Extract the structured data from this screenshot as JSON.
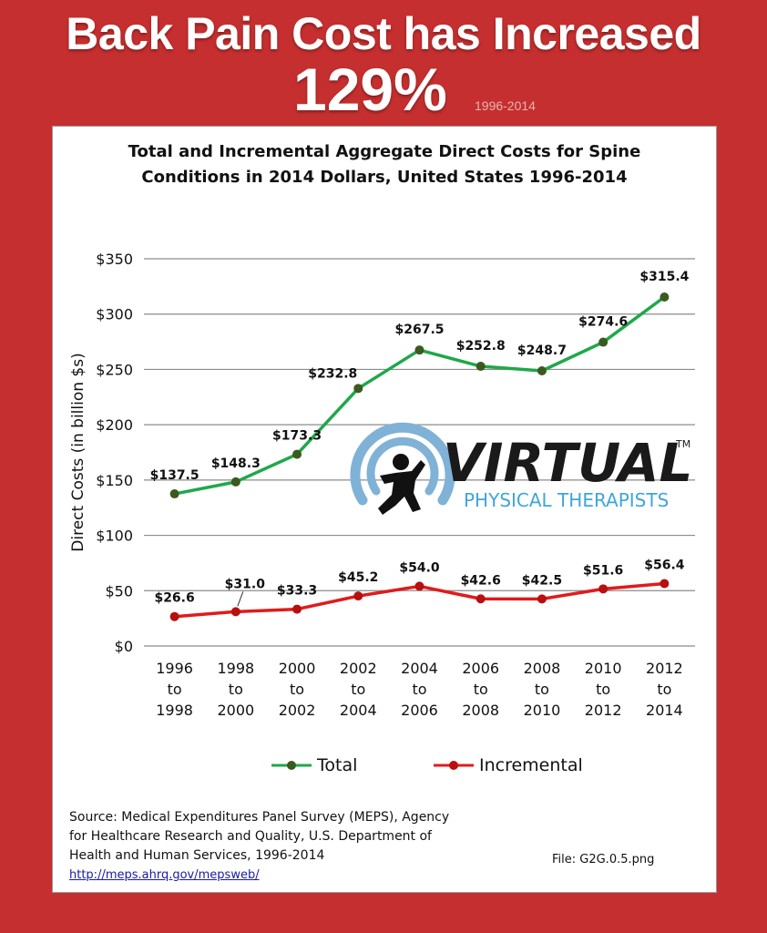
{
  "header": {
    "headline": "Back Pain Cost has Increased",
    "percent": "129%",
    "year_range": "1996-2014"
  },
  "logo": {
    "name": "VIRTUAL",
    "trademark": "TM",
    "subtitle": "PHYSICAL THERAPISTS",
    "colors": {
      "text": "#1a1a1a",
      "accent": "#3fa6d8",
      "ring": "#7fb2d6"
    }
  },
  "chart_data": {
    "type": "line",
    "title_lines": [
      "Total and Incremental Aggregate Direct Costs for Spine",
      "Conditions in 2014 Dollars, United States 1996-2014"
    ],
    "ylabel": "Direct Costs (in billion $s)",
    "ylim": [
      0,
      350
    ],
    "yticks": [
      "$0",
      "$50",
      "$100",
      "$150",
      "$200",
      "$250",
      "$300",
      "$350"
    ],
    "ytick_values": [
      0,
      50,
      100,
      150,
      200,
      250,
      300,
      350
    ],
    "categories": [
      [
        "1996",
        "to",
        "1998"
      ],
      [
        "1998",
        "to",
        "2000"
      ],
      [
        "2000",
        "to",
        "2002"
      ],
      [
        "2002",
        "to",
        "2004"
      ],
      [
        "2004",
        "to",
        "2006"
      ],
      [
        "2006",
        "to",
        "2008"
      ],
      [
        "2008",
        "to",
        "2010"
      ],
      [
        "2010",
        "to",
        "2012"
      ],
      [
        "2012",
        "to",
        "2014"
      ]
    ],
    "grid": true,
    "legend_position": "bottom",
    "series": [
      {
        "name": "Total",
        "color": "#1fa84a",
        "marker_color": "#3b5a1f",
        "values": [
          137.5,
          148.3,
          173.3,
          232.8,
          267.5,
          252.8,
          248.7,
          274.6,
          315.4
        ],
        "labels": [
          "$137.5",
          "$148.3",
          "$173.3",
          "$232.8",
          "$267.5",
          "$252.8",
          "$248.7",
          "$274.6",
          "$315.4"
        ]
      },
      {
        "name": "Incremental",
        "color": "#e01b1b",
        "marker_color": "#b80f0f",
        "values": [
          26.6,
          31.0,
          33.3,
          45.2,
          54.0,
          42.6,
          42.5,
          51.6,
          56.4
        ],
        "labels": [
          "$26.6",
          "$31.0",
          "$33.3",
          "$45.2",
          "$54.0",
          "$42.6",
          "$42.5",
          "$51.6",
          "$56.4"
        ]
      }
    ]
  },
  "source": {
    "text": "Source: Medical Expenditures Panel Survey (MEPS), Agency for Healthcare Research and Quality, U.S. Department of Health and Human Services, 1996-2014",
    "link": "http://meps.ahrq.gov/mepsweb/"
  },
  "file_label": "File: G2G.0.5.png"
}
